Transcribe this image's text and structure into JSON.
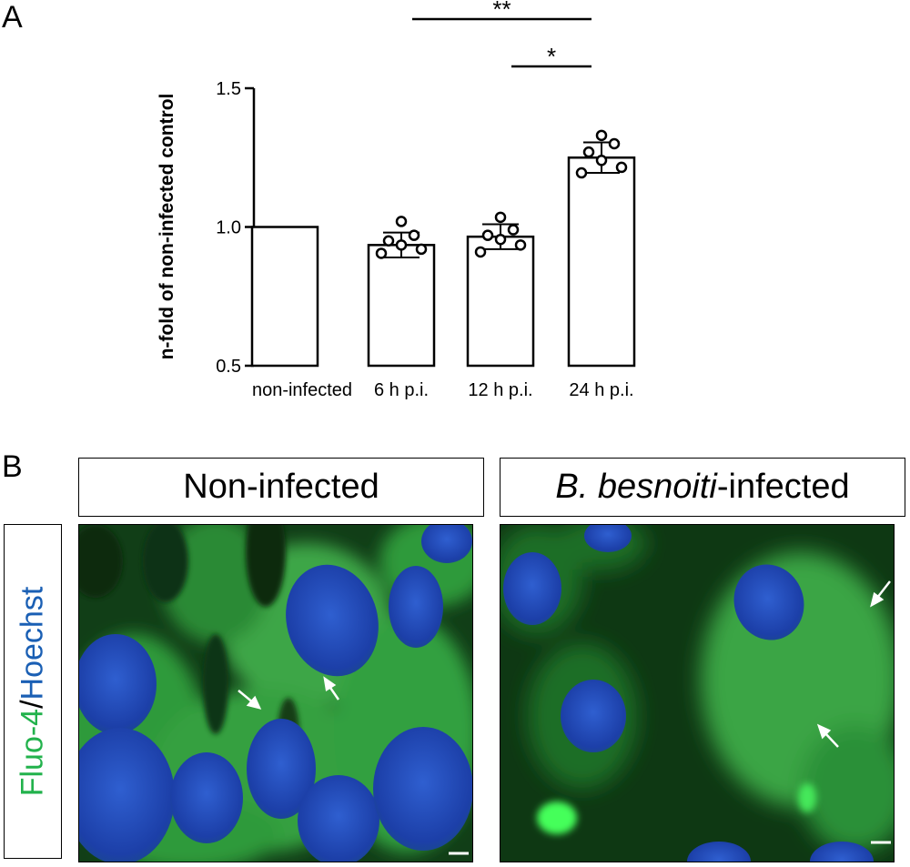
{
  "panel_a": {
    "letter": "A"
  },
  "panel_b": {
    "letter": "B",
    "left_title": "Non-infected",
    "right_title_italic": "B. besnoiti",
    "right_title_rest": "-infected",
    "side_label_part1": "Fluo-4",
    "side_label_sep": "/",
    "side_label_part2": "Hoechst",
    "fluo_color": "#22b24c",
    "hoechst_color": "#1a5fb4"
  },
  "chart_data": {
    "type": "bar",
    "categories": [
      "non-infected",
      "6 h p.i.",
      "12 h p.i.",
      "24 h p.i."
    ],
    "values": [
      1.0,
      0.935,
      0.965,
      1.25
    ],
    "errors": [
      0,
      0.045,
      0.045,
      0.055
    ],
    "points": [
      [],
      [
        0.905,
        0.92,
        0.935,
        0.95,
        0.97,
        1.02
      ],
      [
        0.91,
        0.935,
        0.955,
        0.97,
        0.99,
        1.035
      ],
      [
        1.195,
        1.215,
        1.24,
        1.27,
        1.3,
        1.33
      ]
    ],
    "ylabel": "n-fold of non-infected control",
    "ylim": [
      0.5,
      1.5
    ],
    "yticks": [
      0.5,
      1.0,
      1.5
    ],
    "ytick_labels": [
      "0.5",
      "1.0",
      "1.5"
    ],
    "significance": [
      {
        "from": 1,
        "to": 3,
        "label": "**"
      },
      {
        "from": 2,
        "to": 3,
        "label": "*"
      }
    ]
  }
}
